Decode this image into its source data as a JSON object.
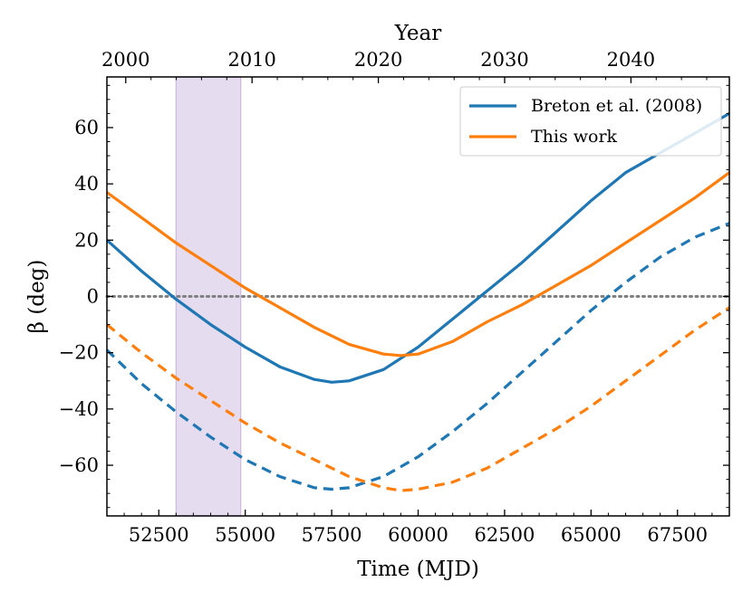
{
  "chart_data": {
    "type": "line",
    "xlabel": "Time (MJD)",
    "ylabel": "β (deg)",
    "top_xlabel": "Year",
    "xlim": [
      51000,
      69000
    ],
    "ylim": [
      -78,
      78
    ],
    "x_ticks": [
      52500,
      55000,
      57500,
      60000,
      62500,
      65000,
      67500
    ],
    "x_tick_labels": [
      "52500",
      "55000",
      "57500",
      "60000",
      "62500",
      "65000",
      "67500"
    ],
    "y_ticks": [
      -60,
      -40,
      -20,
      0,
      20,
      40,
      60
    ],
    "y_tick_labels": [
      "−60",
      "−40",
      "−20",
      "0",
      "20",
      "40",
      "60"
    ],
    "top_ticks": [
      {
        "year": 2000,
        "label": "2000"
      },
      {
        "year": 2010,
        "label": "2010"
      },
      {
        "year": 2020,
        "label": "2020"
      },
      {
        "year": 2030,
        "label": "2030"
      },
      {
        "year": 2040,
        "label": "2040"
      }
    ],
    "shaded_region": {
      "x": [
        53000,
        54870
      ],
      "color": "#e6dcf0"
    },
    "zero_line": {
      "y": 0,
      "color": "#808080",
      "style": "dotted"
    },
    "legend_position": "top-right",
    "grid": false,
    "series": [
      {
        "name": "Breton et al. (2008)",
        "color": "#1f77b4",
        "style": "solid",
        "x": [
          51000,
          52000,
          53000,
          54000,
          55000,
          56000,
          57000,
          57500,
          58000,
          59000,
          60000,
          61000,
          62000,
          63000,
          64000,
          65000,
          66000,
          67000,
          68000,
          69000
        ],
        "y": [
          20,
          9,
          -1,
          -10,
          -18,
          -25,
          -29.5,
          -30.5,
          -30,
          -26,
          -18,
          -8,
          2,
          12,
          23,
          34,
          44,
          51,
          58,
          65
        ]
      },
      {
        "name": "This work",
        "color": "#ff7f0e",
        "style": "solid",
        "x": [
          51000,
          52000,
          53000,
          54000,
          55000,
          56000,
          57000,
          58000,
          59000,
          59500,
          60000,
          61000,
          62000,
          63000,
          64000,
          65000,
          66000,
          67000,
          68000,
          69000
        ],
        "y": [
          37,
          28,
          19,
          11,
          3,
          -4,
          -11,
          -17,
          -20.5,
          -21,
          -20.5,
          -16,
          -9,
          -3,
          4,
          11,
          19,
          27,
          35,
          44
        ]
      },
      {
        "name": "",
        "color": "#1f77b4",
        "style": "dashed",
        "x": [
          51000,
          52000,
          53000,
          54000,
          55000,
          56000,
          57000,
          57500,
          58000,
          59000,
          60000,
          61000,
          62000,
          63000,
          64000,
          65000,
          66000,
          67000,
          68000,
          69000
        ],
        "y": [
          -19,
          -31,
          -41,
          -50,
          -58,
          -64,
          -68,
          -68.5,
          -68,
          -64,
          -57,
          -48,
          -38,
          -27,
          -16,
          -5,
          5,
          14,
          21,
          26
        ]
      },
      {
        "name": "",
        "color": "#ff7f0e",
        "style": "dashed",
        "x": [
          51000,
          52000,
          53000,
          54000,
          55000,
          56000,
          57000,
          58000,
          59000,
          59500,
          60000,
          61000,
          62000,
          63000,
          64000,
          65000,
          66000,
          67000,
          68000,
          69000
        ],
        "y": [
          -10,
          -20,
          -29,
          -37,
          -45,
          -52,
          -58,
          -64,
          -68,
          -69,
          -68.5,
          -66,
          -61,
          -54,
          -47,
          -39,
          -30,
          -21,
          -12,
          -4
        ]
      }
    ]
  }
}
